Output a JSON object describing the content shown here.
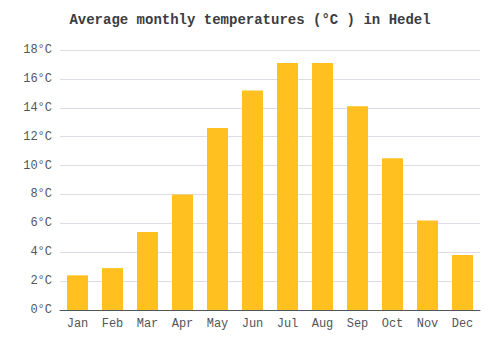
{
  "chart_data": {
    "type": "bar",
    "title": "Average monthly temperatures (°C ) in Hedel",
    "categories": [
      "Jan",
      "Feb",
      "Mar",
      "Apr",
      "May",
      "Jun",
      "Jul",
      "Aug",
      "Sep",
      "Oct",
      "Nov",
      "Dec"
    ],
    "values": [
      2.4,
      2.9,
      5.4,
      8.0,
      12.6,
      15.2,
      17.1,
      17.1,
      14.1,
      10.5,
      6.2,
      3.8
    ],
    "color": "#FFC020",
    "ylim": [
      0,
      18
    ],
    "yticks": [
      {
        "value": 0,
        "label": "0°C"
      },
      {
        "value": 2,
        "label": "2°C"
      },
      {
        "value": 4,
        "label": "4°C"
      },
      {
        "value": 6,
        "label": "6°C"
      },
      {
        "value": 8,
        "label": "8°C"
      },
      {
        "value": 10,
        "label": "10°C"
      },
      {
        "value": 12,
        "label": "12°C"
      },
      {
        "value": 14,
        "label": "14°C"
      },
      {
        "value": 16,
        "label": "16°C"
      },
      {
        "value": 18,
        "label": "18°C"
      }
    ],
    "grid": true
  }
}
